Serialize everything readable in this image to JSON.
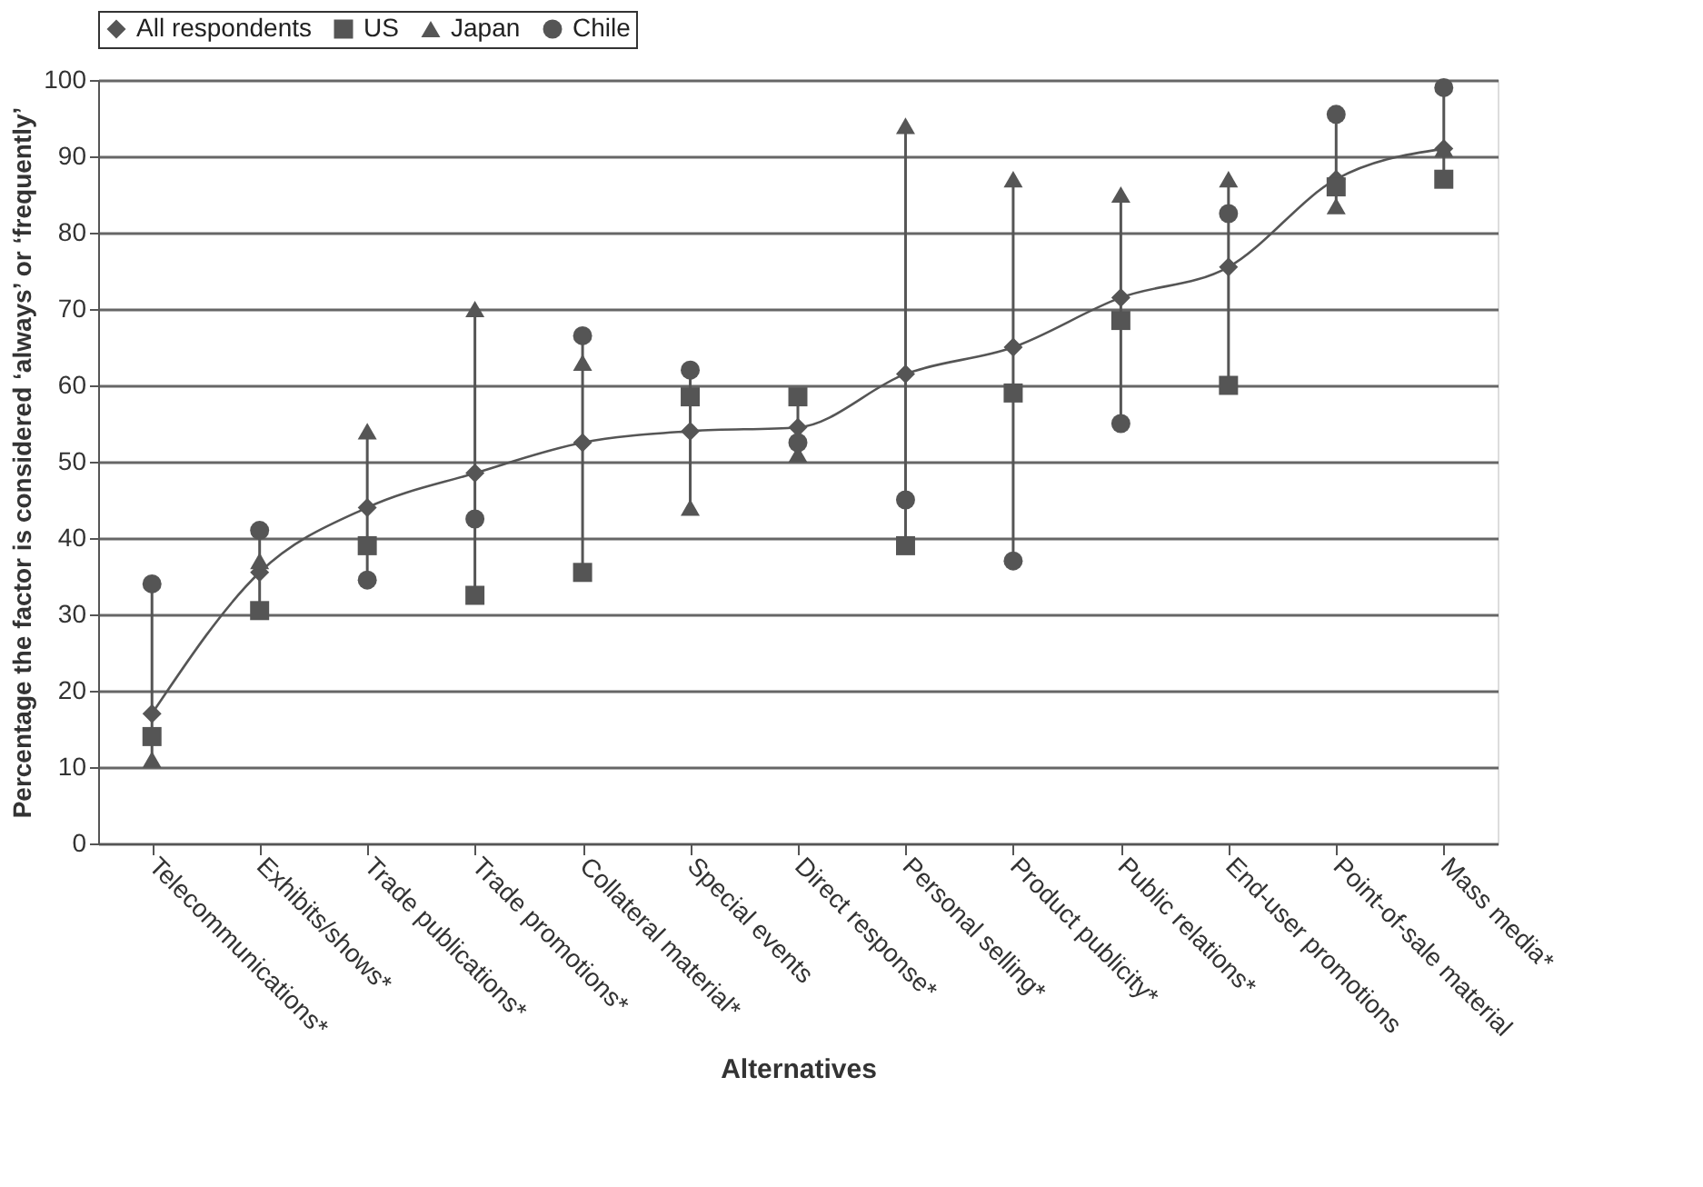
{
  "chart_data": {
    "type": "scatter",
    "xlabel": "Alternatives",
    "ylabel": "Percentage the factor is considered ‘always’ or ‘frequently’",
    "categories": [
      "Telecommunications*",
      "Exhibits/shows*",
      "Trade publications*",
      "Trade promotions*",
      "Collateral material*",
      "Special events",
      "Direct response*",
      "Personal selling*",
      "Product publicity*",
      "Public relations*",
      "End-user promotions",
      "Point-of-sale material",
      "Mass media*"
    ],
    "series": [
      {
        "name": "All respondents",
        "type": "line",
        "marker": "diamond",
        "color": "#555555",
        "values": [
          17,
          35.5,
          44,
          48.5,
          52.5,
          54,
          54.5,
          61.5,
          65,
          71.5,
          75.5,
          87,
          91
        ]
      },
      {
        "name": "US",
        "marker": "square",
        "color": "#555555",
        "values": [
          14,
          30.5,
          39,
          32.5,
          35.5,
          58.5,
          58.5,
          39,
          59,
          68.5,
          60,
          86,
          87
        ]
      },
      {
        "name": "Japan",
        "marker": "triangle",
        "color": "#555555",
        "values": [
          11,
          37,
          54,
          70,
          63,
          44,
          51,
          94,
          87,
          85,
          87,
          83.5,
          91
        ]
      },
      {
        "name": "Chile",
        "marker": "circle",
        "color": "#555555",
        "values": [
          34,
          41,
          34.5,
          42.5,
          66.5,
          62,
          52.5,
          45,
          37,
          55,
          82.5,
          95.5,
          99
        ]
      }
    ],
    "ylim": [
      0,
      100
    ],
    "yticks": [
      0,
      10,
      20,
      30,
      40,
      50,
      60,
      70,
      80,
      90,
      100
    ],
    "grid": "y",
    "legend": "top"
  }
}
